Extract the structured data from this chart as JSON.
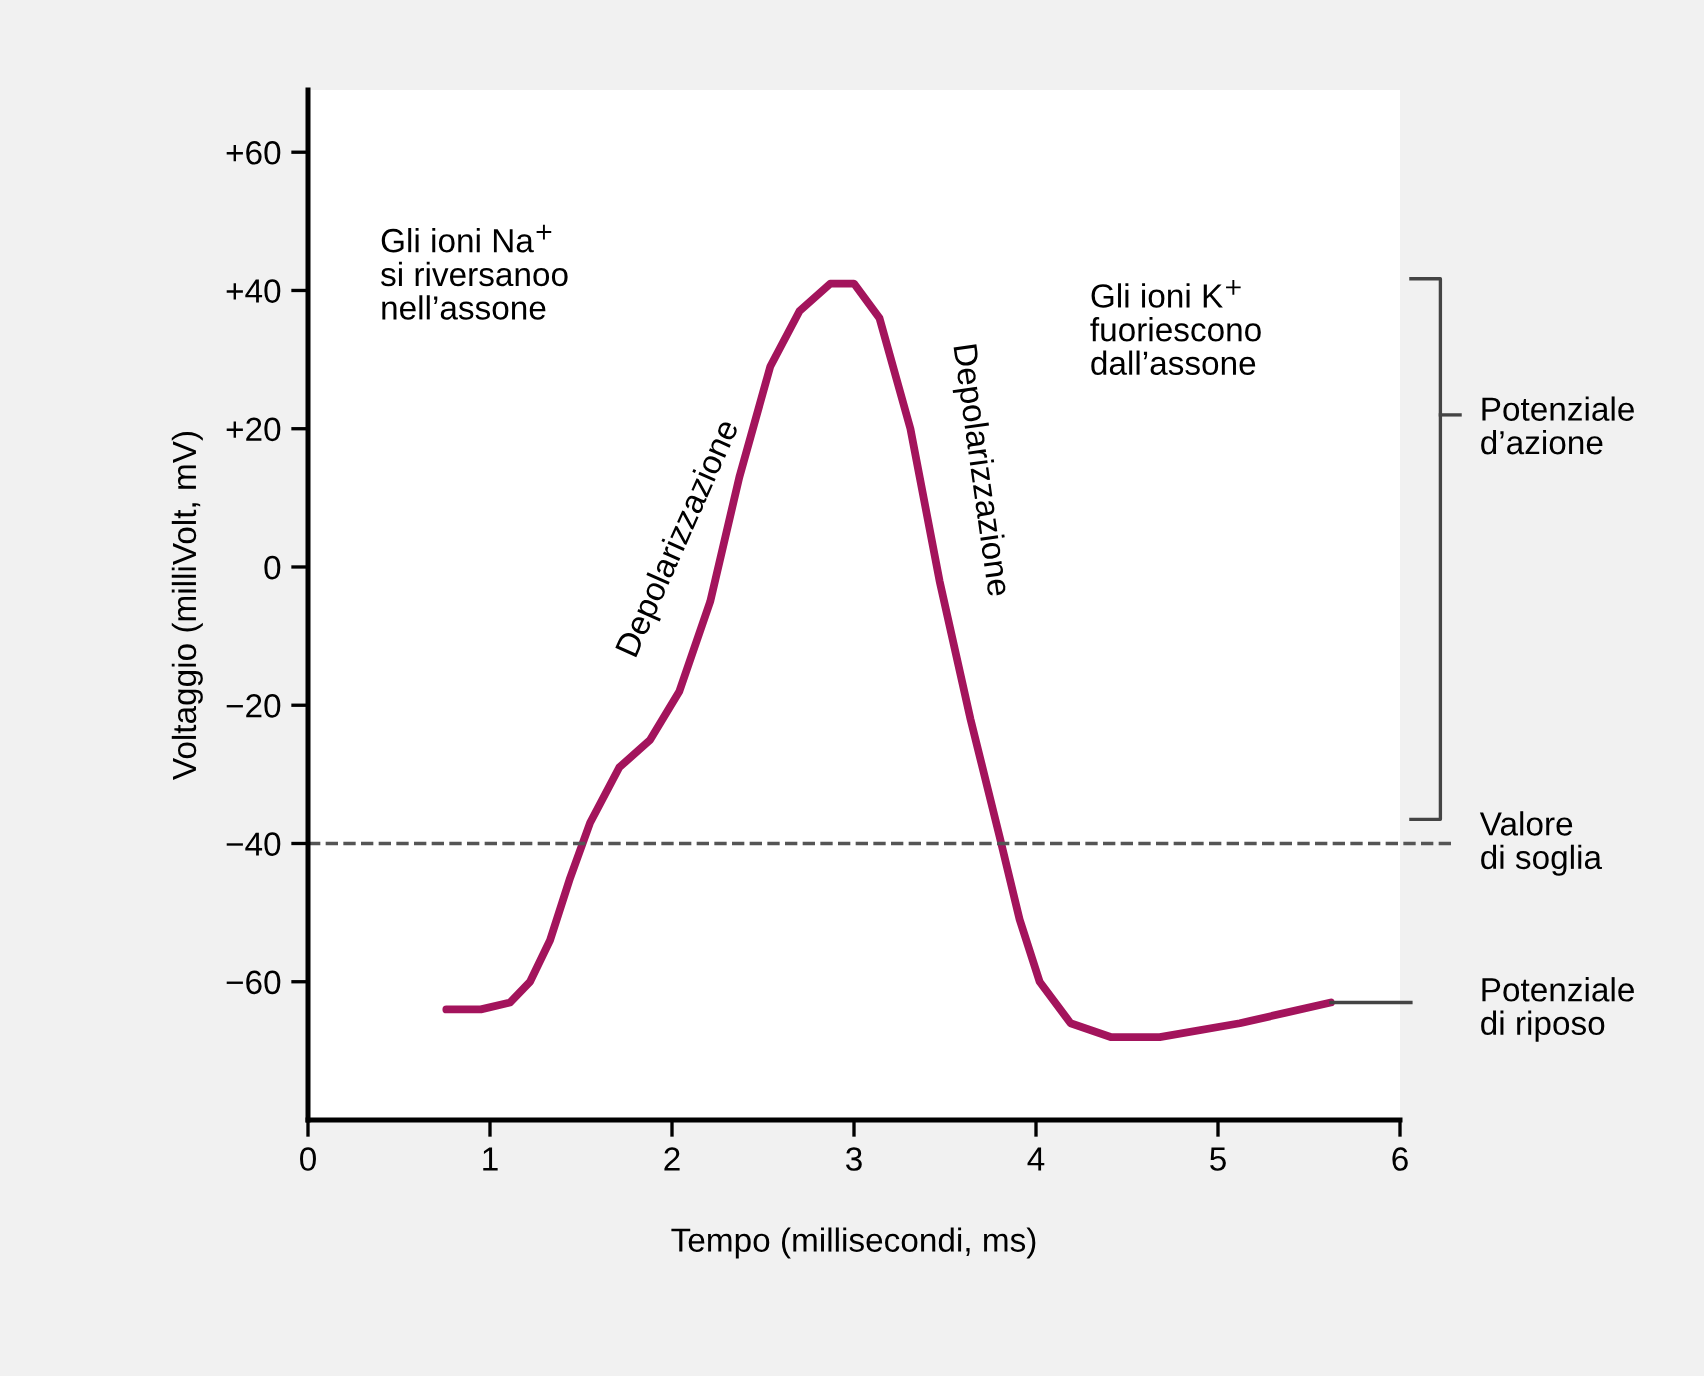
{
  "chart_data": {
    "type": "line",
    "xlabel": "Tempo (millisecondi, ms)",
    "ylabel": "Voltaggio (milliVolt, mV)",
    "xlim": [
      0,
      6
    ],
    "xticks": [
      0,
      1,
      2,
      3,
      4,
      5,
      6
    ],
    "ylim": [
      -80,
      69
    ],
    "yticks": [
      {
        "value": -60,
        "label": "−60"
      },
      {
        "value": -40,
        "label": "−40"
      },
      {
        "value": -20,
        "label": "−20"
      },
      0,
      {
        "value": 20,
        "label": "+20"
      },
      {
        "value": 40,
        "label": "+40"
      },
      {
        "value": 60,
        "label": "+60"
      }
    ],
    "grid": false,
    "marker": "none",
    "line_style": "solid",
    "x": [
      0.76,
      0.95,
      1.11,
      1.22,
      1.33,
      1.44,
      1.55,
      1.71,
      1.88,
      2.04,
      2.21,
      2.37,
      2.54,
      2.7,
      2.87,
      3.0,
      3.14,
      3.31,
      3.47,
      3.64,
      3.8,
      3.91,
      4.02,
      4.19,
      4.41,
      4.68,
      5.12,
      5.62
    ],
    "series": [
      {
        "color": "#a3145c",
        "values": [
          -64,
          -64,
          -63,
          -60,
          -54,
          -45,
          -37,
          -29,
          -25,
          -18,
          -5,
          13,
          29,
          37,
          41,
          41,
          36,
          20,
          -2,
          -22,
          -39,
          -51,
          -60,
          -66,
          -68,
          -68,
          -66,
          -63
        ]
      }
    ],
    "ref_lines": [
      {
        "axis": "y",
        "value": -40,
        "label": "Valore\ndi soglia",
        "color": "#555555",
        "line_style": "dashed"
      }
    ],
    "annotations": [
      "Gli ioni Na$^{+}$\nsi riversanoo\nnell’assone",
      "Depolarizzazione",
      "Depolarizzazione",
      "Gli ioni K$^{+}$\nfuoriescono\ndall’assone",
      "Potenziale\nd’azione",
      "Potenziale\ndi riposo"
    ]
  }
}
